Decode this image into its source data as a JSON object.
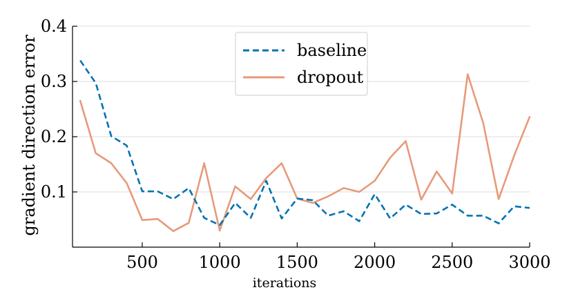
{
  "chart_data": {
    "type": "line",
    "xlabel": "iterations",
    "ylabel": "gradient direction error",
    "xlim": [
      50,
      3000
    ],
    "ylim": [
      0,
      0.4
    ],
    "xticks": [
      500,
      1000,
      1500,
      2000,
      2500,
      3000
    ],
    "xtick_labels": [
      "500",
      "1000",
      "1500",
      "2000",
      "2500",
      "3000"
    ],
    "yticks": [
      0.1,
      0.2,
      0.3,
      0.4
    ],
    "ytick_labels": [
      "0.1",
      "0.2",
      "0.3",
      "0.4"
    ],
    "grid": "horizontal",
    "legend_position": "top-center",
    "x": [
      100,
      200,
      300,
      400,
      500,
      600,
      700,
      800,
      900,
      1000,
      1100,
      1200,
      1300,
      1400,
      1500,
      1600,
      1700,
      1800,
      1900,
      2000,
      2100,
      2200,
      2300,
      2400,
      2500,
      2600,
      2700,
      2800,
      2900,
      3000
    ],
    "series": [
      {
        "name": "baseline",
        "color": "#0072b2",
        "style": "dashed",
        "values": [
          0.338,
          0.297,
          0.201,
          0.184,
          0.101,
          0.101,
          0.087,
          0.107,
          0.053,
          0.04,
          0.08,
          0.053,
          0.12,
          0.052,
          0.088,
          0.085,
          0.057,
          0.065,
          0.047,
          0.096,
          0.052,
          0.077,
          0.06,
          0.061,
          0.077,
          0.057,
          0.057,
          0.043,
          0.074,
          0.071
        ]
      },
      {
        "name": "dropout",
        "color": "#e69a7a",
        "style": "solid",
        "values": [
          0.265,
          0.17,
          0.152,
          0.116,
          0.049,
          0.051,
          0.029,
          0.044,
          0.152,
          0.03,
          0.11,
          0.087,
          0.125,
          0.152,
          0.088,
          0.08,
          0.092,
          0.107,
          0.1,
          0.12,
          0.162,
          0.192,
          0.086,
          0.137,
          0.097,
          0.313,
          0.225,
          0.087,
          0.166,
          0.236
        ]
      }
    ]
  }
}
